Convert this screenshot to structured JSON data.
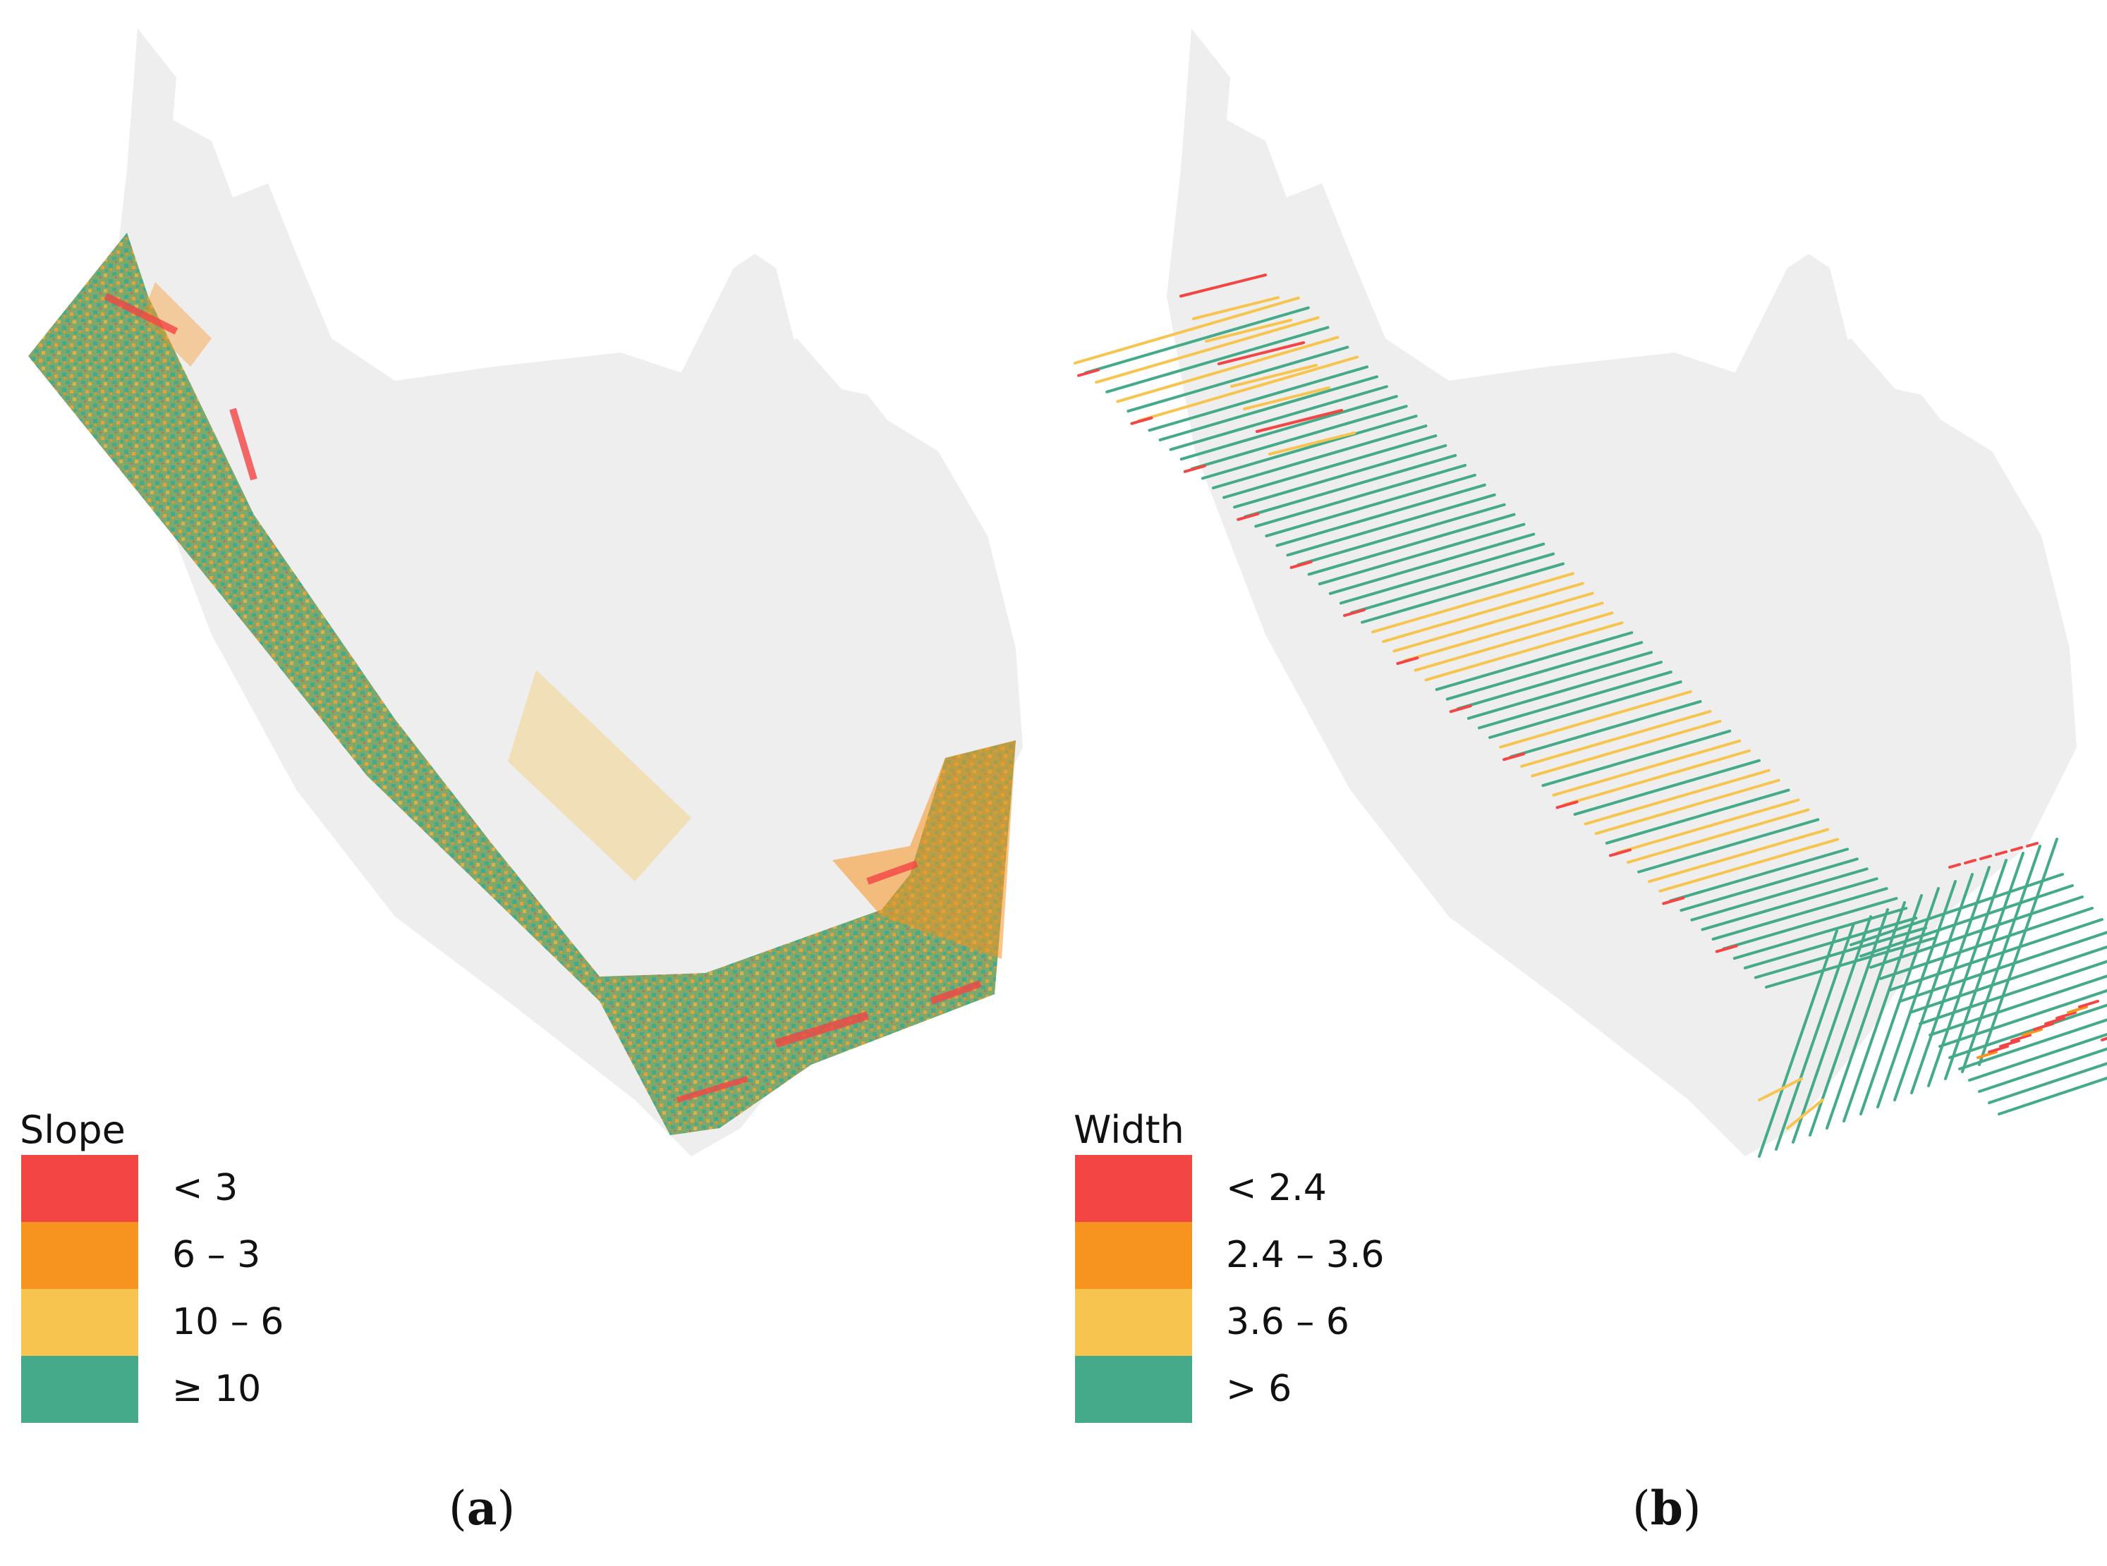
{
  "colors": {
    "red": "#F44545",
    "orange": "#F7941F",
    "yellow": "#F7C54F",
    "green": "#44AA89",
    "background_grey": "#EEEEEE"
  },
  "panel_a": {
    "caption_letter": "a",
    "legend": {
      "title": "Slope",
      "items": [
        {
          "label": "< 3",
          "color": "#F44545"
        },
        {
          "label": "6 – 3",
          "color": "#F7941F"
        },
        {
          "label": "10 – 6",
          "color": "#F7C54F"
        },
        {
          "label": "≥ 10",
          "color": "#44AA89"
        }
      ]
    }
  },
  "panel_b": {
    "caption_letter": "b",
    "legend": {
      "title": "Width",
      "items": [
        {
          "label": "< 2.4",
          "color": "#F44545"
        },
        {
          "label": "2.4 – 3.6",
          "color": "#F7941F"
        },
        {
          "label": "3.6 – 6",
          "color": "#F7C54F"
        },
        {
          "label": "> 6",
          "color": "#44AA89"
        }
      ]
    }
  }
}
